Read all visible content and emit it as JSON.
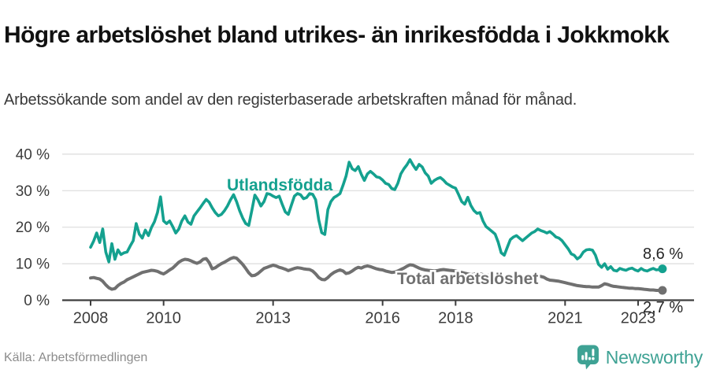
{
  "header": {
    "title": "Högre arbetslöshet bland utrikes- än inrikesfödda i Jokkmokk",
    "subtitle": "Arbetssökande som andel av den registerbaserade arbetskraften månad för månad."
  },
  "footer": {
    "source": "Källa: Arbetsförmedlingen",
    "brand": "Newsworthy"
  },
  "colors": {
    "accent_teal": "#14A18F",
    "line_gray": "#707070",
    "grid": "#DBDBDB",
    "axis": "#3D3D3D",
    "tick_text": "#3C3C3C",
    "end_label_text": "#252525",
    "brand_teal": "#3EA294",
    "title_text": "#111111",
    "subtitle_text": "#3A3A3A",
    "source_text": "#8C8C8C"
  },
  "chart_data": {
    "type": "line",
    "frequency": "monthly",
    "x_start": "2008-01",
    "x_end": "2023-09",
    "ylim": [
      0,
      40
    ],
    "grid": true,
    "legend_position": "inline-labels",
    "y_ticks": {
      "values": [
        0,
        10,
        20,
        30,
        40
      ],
      "labels": [
        "0 %",
        "10 %",
        "20 %",
        "30 %",
        "40 %"
      ]
    },
    "x_ticks": {
      "years": [
        2008,
        2010,
        2013,
        2016,
        2018,
        2021,
        2023
      ],
      "labels": [
        "2008",
        "2010",
        "2013",
        "2016",
        "2018",
        "2021",
        "2023"
      ]
    },
    "series": [
      {
        "name": "Utlandsfödda",
        "color": "#14A18F",
        "end_label": "8,6 %",
        "end_value": 8.6,
        "values": [
          14.5,
          16.2,
          18.4,
          15.8,
          19.5,
          13.2,
          10.5,
          15.5,
          11.2,
          13.8,
          12.5,
          13.0,
          13.2,
          14.8,
          16.3,
          21.0,
          18.1,
          17.0,
          19.2,
          17.7,
          19.9,
          21.5,
          24.0,
          28.3,
          21.7,
          21.0,
          21.7,
          20.2,
          18.4,
          19.5,
          21.7,
          23.1,
          21.4,
          20.8,
          23.1,
          24.2,
          25.3,
          26.5,
          27.6,
          26.8,
          25.3,
          24.0,
          23.1,
          23.5,
          24.5,
          25.8,
          27.5,
          28.9,
          27.0,
          24.5,
          22.5,
          21.0,
          20.5,
          24.5,
          28.8,
          27.5,
          25.8,
          27.0,
          29.2,
          29.0,
          28.5,
          28.1,
          28.5,
          26.3,
          24.2,
          23.5,
          26.0,
          28.5,
          29.2,
          28.9,
          27.8,
          28.1,
          29.2,
          29.0,
          27.5,
          22.0,
          18.5,
          18.0,
          24.8,
          27.0,
          28.1,
          28.6,
          29.2,
          31.5,
          34.0,
          37.8,
          36.0,
          35.5,
          36.6,
          34.5,
          32.8,
          34.6,
          35.3,
          34.6,
          33.8,
          33.6,
          32.9,
          32.0,
          31.7,
          30.6,
          30.3,
          32.0,
          34.6,
          36.0,
          37.1,
          38.5,
          37.0,
          35.8,
          37.2,
          36.5,
          34.9,
          34.0,
          32.0,
          32.8,
          33.3,
          33.6,
          32.9,
          32.0,
          31.5,
          31.0,
          30.7,
          28.9,
          27.0,
          26.3,
          28.2,
          26.0,
          24.6,
          23.8,
          24.0,
          21.7,
          20.2,
          19.5,
          18.8,
          18.1,
          15.9,
          13.0,
          12.3,
          14.5,
          16.6,
          17.3,
          17.7,
          17.0,
          16.3,
          17.0,
          17.7,
          18.4,
          18.8,
          19.5,
          19.1,
          18.8,
          18.4,
          18.8,
          18.1,
          17.3,
          17.0,
          16.3,
          15.2,
          14.1,
          12.7,
          12.3,
          11.3,
          11.9,
          13.2,
          13.8,
          13.9,
          13.7,
          12.3,
          9.8,
          9.0,
          10.0,
          8.5,
          9.2,
          8.2,
          8.0,
          8.7,
          8.4,
          8.2,
          8.6,
          8.8,
          8.3,
          8.0,
          8.7,
          8.2,
          8.0,
          8.4,
          8.7,
          8.3,
          8.4,
          8.6
        ]
      },
      {
        "name": "Total arbetslöshet",
        "color": "#707070",
        "end_label": "2,7 %",
        "end_value": 2.7,
        "values": [
          6.1,
          6.2,
          6.0,
          5.8,
          5.2,
          4.2,
          3.4,
          3.0,
          3.2,
          4.0,
          4.6,
          5.0,
          5.6,
          6.0,
          6.4,
          6.8,
          7.2,
          7.6,
          7.8,
          8.0,
          8.2,
          8.1,
          7.9,
          7.5,
          7.2,
          7.7,
          8.3,
          8.8,
          9.6,
          10.4,
          10.9,
          11.2,
          11.1,
          10.8,
          10.4,
          10.1,
          10.5,
          11.2,
          11.4,
          10.3,
          8.6,
          8.9,
          9.5,
          10.0,
          10.4,
          10.9,
          11.4,
          11.7,
          11.5,
          10.7,
          9.8,
          8.7,
          7.5,
          6.7,
          6.8,
          7.3,
          8.0,
          8.7,
          9.0,
          9.3,
          9.6,
          9.4,
          9.0,
          8.8,
          8.5,
          8.1,
          8.4,
          8.7,
          8.9,
          8.8,
          8.6,
          8.5,
          8.4,
          8.0,
          7.2,
          6.2,
          5.7,
          5.6,
          6.2,
          7.0,
          7.6,
          8.0,
          8.3,
          8.0,
          7.3,
          7.5,
          8.0,
          8.6,
          9.0,
          8.8,
          9.2,
          9.4,
          9.2,
          8.9,
          8.6,
          8.4,
          8.3,
          8.0,
          7.8,
          7.6,
          7.7,
          8.0,
          8.4,
          8.8,
          9.3,
          9.7,
          9.6,
          9.2,
          8.8,
          8.5,
          8.3,
          8.2,
          8.1,
          8.0,
          8.1,
          8.3,
          8.4,
          8.3,
          8.2,
          8.1,
          8.0,
          7.8,
          7.6,
          7.4,
          7.2,
          7.0,
          7.1,
          7.3,
          7.2,
          7.0,
          6.9,
          6.8,
          6.8,
          6.7,
          6.6,
          6.5,
          6.4,
          6.3,
          6.4,
          6.5,
          6.5,
          6.4,
          6.3,
          6.3,
          6.3,
          6.3,
          6.4,
          6.6,
          6.5,
          6.3,
          5.8,
          5.5,
          5.4,
          5.3,
          5.2,
          5.0,
          4.8,
          4.6,
          4.4,
          4.2,
          4.0,
          3.9,
          3.8,
          3.7,
          3.7,
          3.6,
          3.6,
          3.6,
          4.0,
          4.5,
          4.3,
          4.0,
          3.8,
          3.7,
          3.6,
          3.5,
          3.4,
          3.3,
          3.3,
          3.2,
          3.2,
          3.1,
          3.0,
          2.9,
          2.8,
          2.8,
          2.7,
          2.7,
          2.7
        ]
      }
    ]
  }
}
